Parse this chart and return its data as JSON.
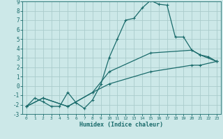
{
  "xlabel": "Humidex (Indice chaleur)",
  "xlim": [
    -0.5,
    23.5
  ],
  "ylim": [
    -3,
    9
  ],
  "xticks": [
    0,
    1,
    2,
    3,
    4,
    5,
    6,
    7,
    8,
    9,
    10,
    11,
    12,
    13,
    14,
    15,
    16,
    17,
    18,
    19,
    20,
    21,
    22,
    23
  ],
  "yticks": [
    -3,
    -2,
    -1,
    0,
    1,
    2,
    3,
    4,
    5,
    6,
    7,
    8,
    9
  ],
  "background_color": "#cce8e8",
  "line_color": "#1a6b6b",
  "grid_color": "#b8d8d8",
  "line1_x": [
    0,
    1,
    2,
    3,
    4,
    5,
    6,
    7,
    8,
    9,
    10,
    11,
    12,
    13,
    14,
    15,
    16,
    17,
    18,
    19,
    20,
    21,
    22,
    23
  ],
  "line1_y": [
    -2.2,
    -1.3,
    -1.7,
    -2.2,
    -2.2,
    -0.7,
    -1.8,
    -2.4,
    -1.5,
    0.15,
    3.0,
    5.0,
    7.0,
    7.2,
    8.3,
    9.1,
    8.7,
    8.6,
    5.2,
    5.2,
    3.8,
    3.3,
    3.1,
    2.6
  ],
  "line2_x": [
    0,
    2,
    5,
    8,
    10,
    15,
    20,
    21,
    23
  ],
  "line2_y": [
    -2.2,
    -1.3,
    -2.2,
    -0.7,
    1.5,
    3.5,
    3.8,
    3.3,
    2.6
  ],
  "line3_x": [
    0,
    2,
    5,
    8,
    10,
    15,
    20,
    21,
    23
  ],
  "line3_y": [
    -2.2,
    -1.3,
    -2.2,
    -0.7,
    0.2,
    1.5,
    2.2,
    2.2,
    2.6
  ]
}
